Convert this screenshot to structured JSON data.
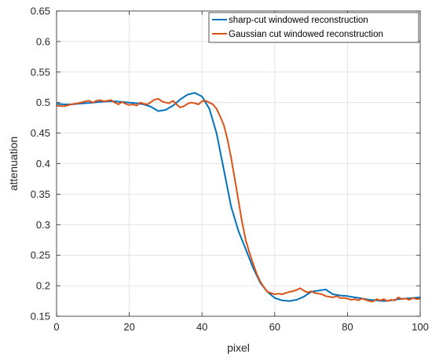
{
  "chart_data": {
    "type": "line",
    "xlabel": "pixel",
    "ylabel": "attenuation",
    "xlim": [
      0,
      100
    ],
    "ylim": [
      0.15,
      0.65
    ],
    "xticks": [
      "0",
      "20",
      "40",
      "60",
      "80",
      "100"
    ],
    "yticks": [
      "0.15",
      "0.2",
      "0.25",
      "0.3",
      "0.35",
      "0.4",
      "0.45",
      "0.5",
      "0.55",
      "0.6",
      "0.65"
    ],
    "grid": true,
    "legend_position": "top-right",
    "series": [
      {
        "name": "sharp-cut windowed reconstruction",
        "color": "#0072BD",
        "x": [
          0,
          2,
          4,
          6,
          8,
          10,
          12,
          14,
          16,
          18,
          20,
          22,
          24,
          26,
          28,
          30,
          32,
          34,
          36,
          38,
          40,
          42,
          44,
          46,
          48,
          50,
          52,
          54,
          56,
          58,
          60,
          62,
          64,
          66,
          68,
          70,
          72,
          74,
          76,
          78,
          80,
          82,
          84,
          86,
          88,
          90,
          92,
          94,
          96,
          98,
          100
        ],
        "y": [
          0.498,
          0.497,
          0.497,
          0.498,
          0.499,
          0.5,
          0.501,
          0.502,
          0.502,
          0.501,
          0.5,
          0.499,
          0.497,
          0.493,
          0.486,
          0.488,
          0.495,
          0.505,
          0.513,
          0.516,
          0.51,
          0.49,
          0.45,
          0.39,
          0.33,
          0.29,
          0.26,
          0.23,
          0.205,
          0.19,
          0.18,
          0.176,
          0.175,
          0.177,
          0.182,
          0.19,
          0.192,
          0.194,
          0.186,
          0.184,
          0.183,
          0.181,
          0.179,
          0.177,
          0.176,
          0.175,
          0.176,
          0.178,
          0.179,
          0.18,
          0.181
        ]
      },
      {
        "name": "Gaussian cut windowed reconstruction",
        "color": "#D95319",
        "x": [
          0,
          2,
          4,
          6,
          8,
          9,
          10,
          11,
          12,
          13,
          14,
          15,
          16,
          17,
          18,
          19,
          20,
          21,
          22,
          23,
          24,
          25,
          26,
          27,
          28,
          29,
          30,
          31,
          32,
          33,
          34,
          35,
          36,
          37,
          38,
          39,
          40,
          41,
          42,
          43,
          44,
          45,
          46,
          47,
          48,
          49,
          50,
          51,
          52,
          53,
          54,
          55,
          56,
          57,
          58,
          59,
          60,
          61,
          62,
          63,
          64,
          65,
          66,
          67,
          68,
          69,
          70,
          71,
          72,
          73,
          74,
          75,
          76,
          77,
          78,
          79,
          80,
          81,
          82,
          83,
          84,
          85,
          86,
          87,
          88,
          89,
          90,
          91,
          92,
          93,
          94,
          95,
          96,
          97,
          98,
          99,
          100
        ],
        "y": [
          0.495,
          0.494,
          0.497,
          0.499,
          0.502,
          0.503,
          0.5,
          0.503,
          0.504,
          0.502,
          0.503,
          0.504,
          0.5,
          0.497,
          0.501,
          0.498,
          0.496,
          0.497,
          0.495,
          0.5,
          0.498,
          0.497,
          0.501,
          0.505,
          0.506,
          0.502,
          0.5,
          0.499,
          0.503,
          0.497,
          0.492,
          0.494,
          0.498,
          0.5,
          0.499,
          0.497,
          0.502,
          0.503,
          0.5,
          0.497,
          0.49,
          0.477,
          0.463,
          0.44,
          0.41,
          0.375,
          0.34,
          0.305,
          0.275,
          0.255,
          0.237,
          0.22,
          0.207,
          0.198,
          0.19,
          0.188,
          0.186,
          0.187,
          0.186,
          0.188,
          0.19,
          0.191,
          0.193,
          0.196,
          0.192,
          0.189,
          0.191,
          0.188,
          0.187,
          0.186,
          0.183,
          0.182,
          0.181,
          0.183,
          0.18,
          0.18,
          0.179,
          0.177,
          0.178,
          0.176,
          0.179,
          0.177,
          0.175,
          0.174,
          0.178,
          0.176,
          0.178,
          0.175,
          0.177,
          0.176,
          0.181,
          0.178,
          0.179,
          0.177,
          0.18,
          0.178,
          0.179
        ]
      }
    ]
  }
}
